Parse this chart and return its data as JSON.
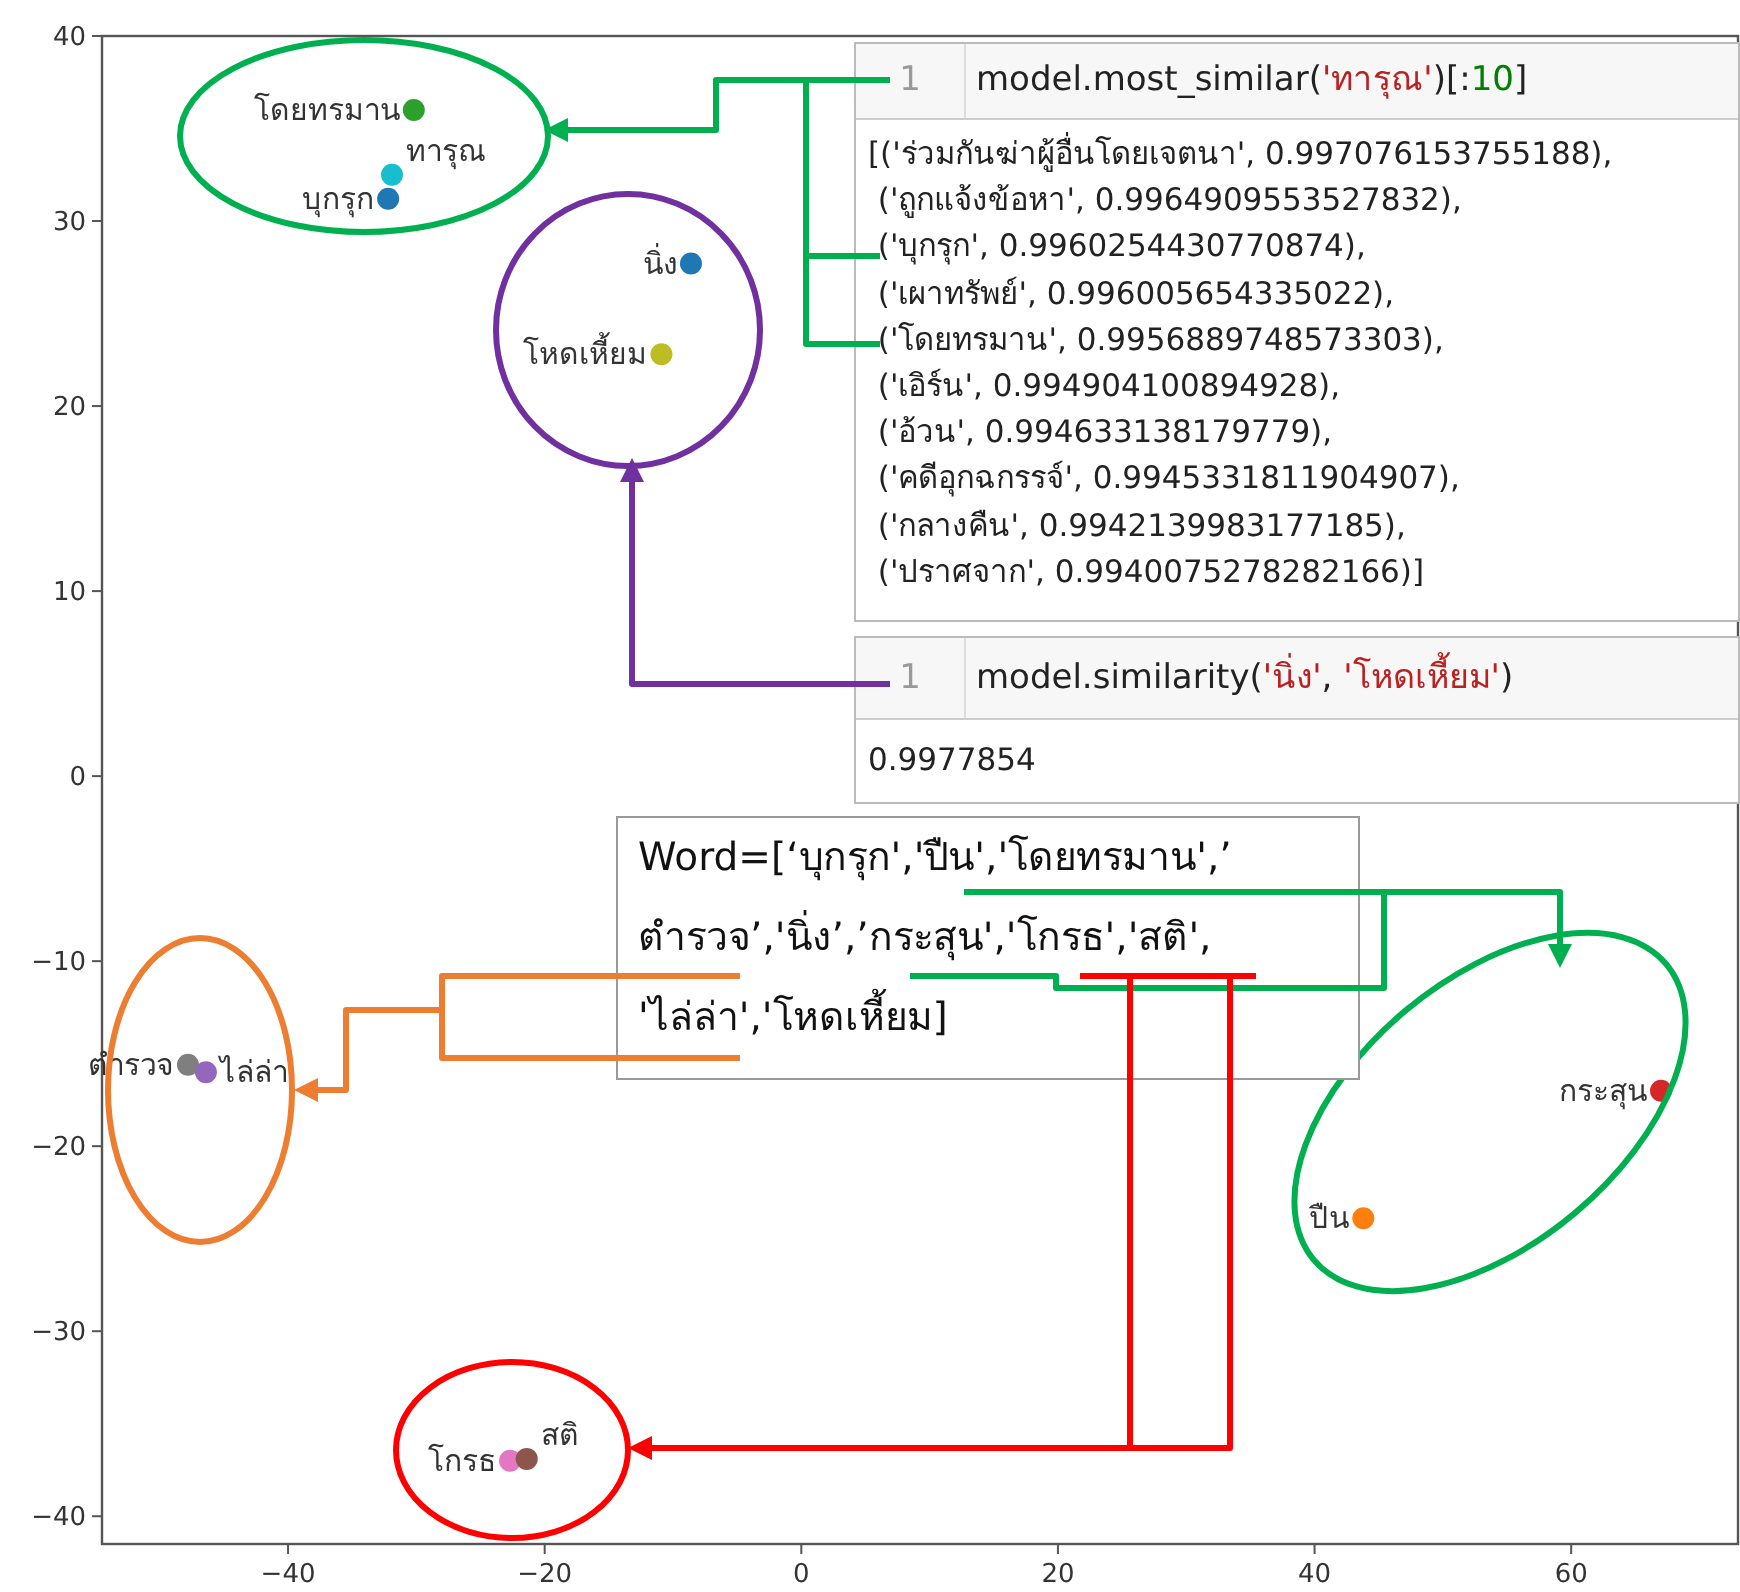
{
  "chart_data": {
    "type": "scatter",
    "xlim": [
      -54.5,
      73
    ],
    "ylim": [
      -41.5,
      40
    ],
    "xticks": [
      -40,
      -20,
      0,
      20,
      40,
      60
    ],
    "yticks": [
      -40,
      -30,
      -20,
      -10,
      0,
      10,
      20,
      30,
      40
    ],
    "marker": "circle",
    "series": [
      {
        "name": "บุกรุก",
        "color": "#1f77b4",
        "x": [
          -32.2
        ],
        "values": [
          31.2
        ]
      },
      {
        "name": "ปืน",
        "color": "#ff7f0e",
        "x": [
          43.8
        ],
        "values": [
          -23.9
        ]
      },
      {
        "name": "โดยทรมาน",
        "color": "#2ca02c",
        "x": [
          -30.2
        ],
        "values": [
          36.0
        ]
      },
      {
        "name": "ตำรวจ",
        "color": "#7f7f7f",
        "x": [
          -47.8
        ],
        "values": [
          -15.6
        ]
      },
      {
        "name": "นิ่ง",
        "color": "#1f77b4",
        "x": [
          -8.6
        ],
        "values": [
          27.7
        ]
      },
      {
        "name": "กระสุน",
        "color": "#d62728",
        "x": [
          67.0
        ],
        "values": [
          -17.0
        ]
      },
      {
        "name": "โกรธ",
        "color": "#e377c2",
        "x": [
          -22.7
        ],
        "values": [
          -37.0
        ]
      },
      {
        "name": "สติ",
        "color": "#8c564b",
        "x": [
          -21.4
        ],
        "values": [
          -36.9
        ]
      },
      {
        "name": "ไล่ล่า",
        "color": "#9467bd",
        "x": [
          -46.4
        ],
        "values": [
          -16.0
        ]
      },
      {
        "name": "โหดเหี้ยม",
        "color": "#bcbd22",
        "x": [
          -10.9
        ],
        "values": [
          22.8
        ]
      },
      {
        "name": "ทารุณ",
        "color": "#17becf",
        "x": [
          -31.9
        ],
        "values": [
          32.5
        ]
      }
    ],
    "annotations": [
      "1",
      "model.most_similar('ทารุณ')[:10]",
      "[('ร่วมกันฆ่าผู้อื่นโดยเจตนา', 0.997076153755188),",
      " ('ถูกแจ้งข้อหา', 0.9964909553527832),",
      " ('บุกรุก', 0.9960254430770874),",
      " ('เผาทรัพย์', 0.996005654335022),",
      " ('โดยทรมาน', 0.9956889748573303),",
      " ('เอิร์น', 0.994904100894928),",
      " ('อ้วน', 0.994633138179779),",
      " ('คดีอุกฉกรรจ์', 0.9945331811904907),",
      " ('กลางคืน', 0.9942139983177185),",
      " ('ปราศจาก', 0.9940075278282166)]",
      "1",
      "model.similarity('นิ่ง', 'โหดเหี้ยม')",
      "0.9977854",
      "Word=[‘บุกรุก','ปืน','โดยทรมาน',’",
      "ตำรวจ’,'นิ่ง’,’กระสุน','โกรธ','สติ',",
      "'ไล่ล่า','โหดเหี้ยม]"
    ]
  }
}
